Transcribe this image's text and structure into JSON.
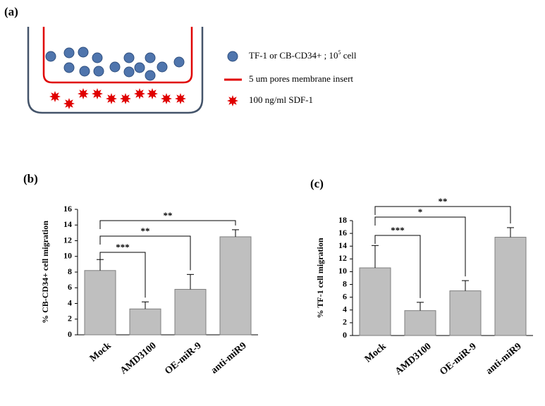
{
  "panel_a": {
    "label": "(a)",
    "legend": [
      {
        "text": "TF-1 or CB-CD34+ ; 10",
        "sup": "5",
        "tail": " cell"
      },
      {
        "text": "5 um pores membrane insert"
      },
      {
        "text": "100 ng/ml SDF-1"
      }
    ]
  },
  "chart_data": [
    {
      "type": "bar",
      "label": "(b)",
      "y_label": "% CB-CD34+ cell migration",
      "categories": [
        "Mock",
        "AMD3100",
        "OE-miR-9",
        "anti-miR9"
      ],
      "values": [
        8.2,
        3.3,
        5.8,
        12.5
      ],
      "errors": [
        1.4,
        0.9,
        1.9,
        0.9
      ],
      "color": "#bfbfbf",
      "ylim": [
        0,
        16
      ],
      "yticks": [
        0,
        2,
        4,
        6,
        8,
        10,
        12,
        14,
        16
      ],
      "brackets": [
        {
          "from": 0,
          "to": 1,
          "label": "***"
        },
        {
          "from": 0,
          "to": 2,
          "label": "**"
        },
        {
          "from": 0,
          "to": 3,
          "label": "**"
        }
      ]
    },
    {
      "type": "bar",
      "label": "(c)",
      "y_label": "% TF-1 cell migration",
      "categories": [
        "Mock",
        "AMD3100",
        "OE-miR-9",
        "anti-miR9"
      ],
      "values": [
        10.6,
        3.9,
        7.0,
        15.4
      ],
      "errors": [
        3.5,
        1.3,
        1.6,
        1.5
      ],
      "color": "#bfbfbf",
      "ylim": [
        0,
        18
      ],
      "yticks": [
        0,
        2,
        4,
        6,
        8,
        10,
        12,
        14,
        16,
        18
      ],
      "brackets": [
        {
          "from": 0,
          "to": 1,
          "label": "***"
        },
        {
          "from": 0,
          "to": 2,
          "label": "*"
        },
        {
          "from": 0,
          "to": 3,
          "label": "**"
        }
      ]
    }
  ]
}
